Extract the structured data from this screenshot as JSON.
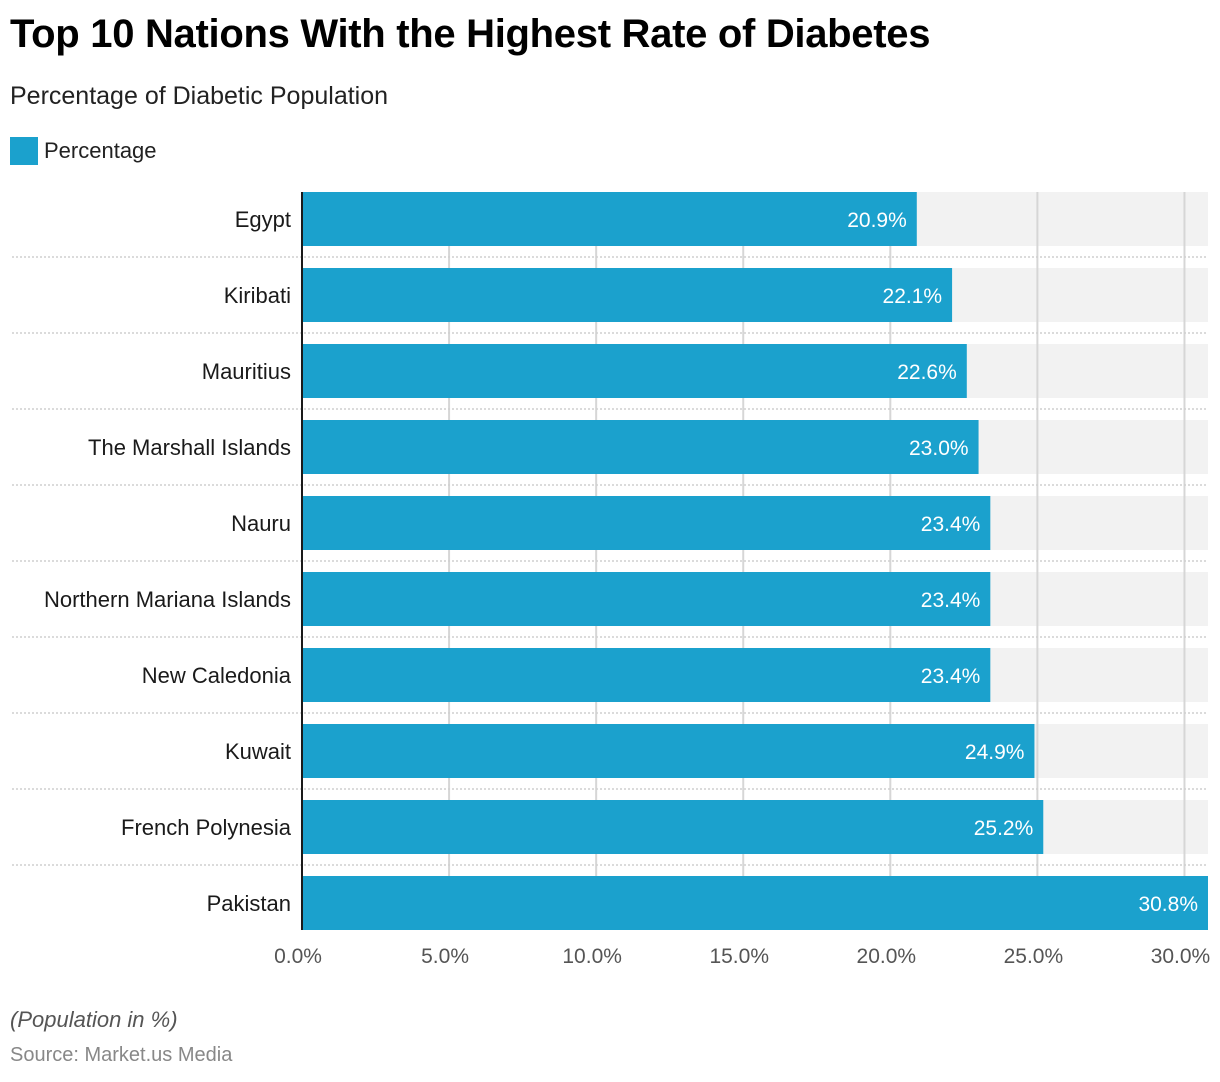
{
  "chart_data": {
    "type": "bar",
    "orientation": "horizontal",
    "title": "Top 10 Nations With the Highest Rate of Diabetes",
    "subtitle": "Percentage of Diabetic Population",
    "legend": [
      {
        "name": "Percentage",
        "color": "#1ba1cd"
      }
    ],
    "legend_position": "top-left",
    "categories": [
      "Egypt",
      "Kiribati",
      "Mauritius",
      "The Marshall Islands",
      "Nauru",
      "Northern Mariana Islands",
      "New Caledonia",
      "Kuwait",
      "French Polynesia",
      "Pakistan"
    ],
    "series": [
      {
        "name": "Percentage",
        "values": [
          20.9,
          22.1,
          22.6,
          23.0,
          23.4,
          23.4,
          23.4,
          24.9,
          25.2,
          30.8
        ]
      }
    ],
    "data_labels": [
      "20.9%",
      "22.1%",
      "22.6%",
      "23.0%",
      "23.4%",
      "23.4%",
      "23.4%",
      "24.9%",
      "25.2%",
      "30.8%"
    ],
    "xlabel": "",
    "ylabel": "",
    "xlim": [
      0,
      30.8
    ],
    "xticks": [
      0,
      5,
      10,
      15,
      20,
      25,
      30
    ],
    "xtick_labels": [
      "0.0%",
      "5.0%",
      "10.0%",
      "15.0%",
      "20.0%",
      "25.0%",
      "30.0%"
    ],
    "grid": true,
    "colors": {
      "bar": "#1ba1cd",
      "track": "#f2f2f2",
      "grid": "#d6d6d6"
    }
  },
  "footer": {
    "note": "(Population in %)",
    "source": "Source: Market.us Media"
  }
}
